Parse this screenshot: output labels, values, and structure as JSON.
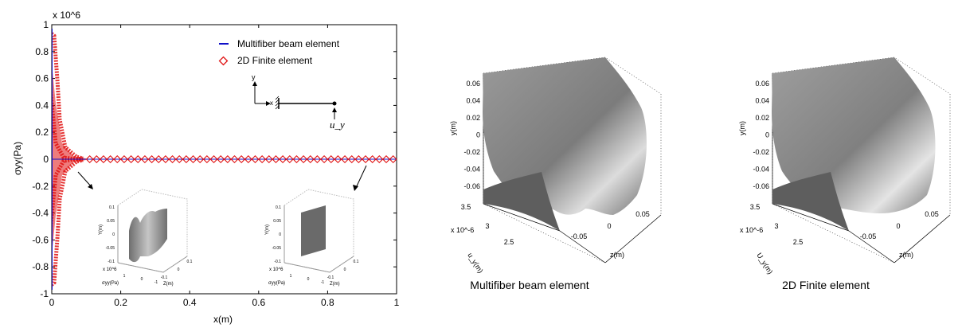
{
  "chart_data": [
    {
      "type": "scatter",
      "xlabel": "x(m)",
      "ylabel": "σyy(Pa)",
      "y_multiplier": "x 10^6",
      "xlim": [
        0,
        1
      ],
      "ylim": [
        -1,
        1
      ],
      "x_ticks": [
        "0",
        "0.2",
        "0.4",
        "0.6",
        "0.8",
        "1"
      ],
      "y_ticks": [
        "-1",
        "-0.8",
        "-0.6",
        "-0.4",
        "-0.2",
        "0",
        "0.2",
        "0.4",
        "0.6",
        "0.8",
        "1"
      ],
      "legend_position": "top-right",
      "legend": [
        {
          "name": "Multifiber beam element",
          "marker": "line",
          "color": "#1010c8"
        },
        {
          "name": "2D Finite element",
          "marker": "diamond",
          "color": "#e01010"
        }
      ],
      "series": [
        {
          "name": "2D Finite element",
          "x": [
            0.11,
            0.13,
            0.15,
            0.17,
            0.19,
            0.21,
            0.23,
            0.25,
            0.27,
            0.29,
            0.31,
            0.33,
            0.35,
            0.37,
            0.39,
            0.41,
            0.43,
            0.45,
            0.47,
            0.49,
            0.51,
            0.53,
            0.55,
            0.57,
            0.59,
            0.61,
            0.63,
            0.65,
            0.67,
            0.69,
            0.71,
            0.73,
            0.75,
            0.77,
            0.79,
            0.81,
            0.83,
            0.85,
            0.87,
            0.89,
            0.91,
            0.93,
            0.95,
            0.97,
            0.99
          ],
          "y_value": 0
        }
      ],
      "diagram_labels": {
        "y_axis": "y",
        "x_axis": "x",
        "load": "u_y"
      },
      "insets": [
        {
          "y_axis": "Y(m)",
          "x_axis": "σyy(Pa)",
          "z_axis": "Z(m)",
          "multiplier": "x 10^6",
          "y_ticks": [
            "0.1",
            "0.05",
            "0",
            "-0.05",
            "-0.1"
          ],
          "x_ticks": [
            "1",
            "0",
            "-1"
          ],
          "z_ticks": [
            "-0.1",
            "0",
            "0.1"
          ]
        },
        {
          "y_axis": "Y(m)",
          "x_axis": "σyy(Pa)",
          "z_axis": "Z(m)",
          "multiplier": "x 10^6",
          "y_ticks": [
            "0.1",
            "0.05",
            "0",
            "-0.05",
            "-0.1"
          ],
          "x_ticks": [
            "1",
            "0",
            "-1"
          ],
          "z_ticks": [
            "-0.1",
            "0",
            "0.1"
          ]
        }
      ]
    },
    {
      "type": "surface",
      "caption": "Multifiber beam element",
      "ylabel": "y(m)",
      "xlabel": "u_y(m)",
      "zlabel": "z(m)",
      "x_multiplier": "x 10^-6",
      "y_ticks": [
        "0.06",
        "0.04",
        "0.02",
        "0",
        "-0.02",
        "-0.04",
        "-0.06"
      ],
      "x_ticks": [
        "3.5",
        "3",
        "2.5"
      ],
      "z_ticks": [
        "-0.05",
        "0",
        "0.05"
      ]
    },
    {
      "type": "surface",
      "caption": "2D Finite element",
      "ylabel": "y(m)",
      "xlabel": "U_y(m)",
      "zlabel": "z(m)",
      "x_multiplier": "x 10^-6",
      "y_ticks": [
        "0.06",
        "0.04",
        "0.02",
        "0",
        "-0.02",
        "-0.04",
        "-0.06"
      ],
      "x_ticks": [
        "3.5",
        "3",
        "2.5"
      ],
      "z_ticks": [
        "-0.05",
        "0",
        "0.05"
      ]
    }
  ]
}
